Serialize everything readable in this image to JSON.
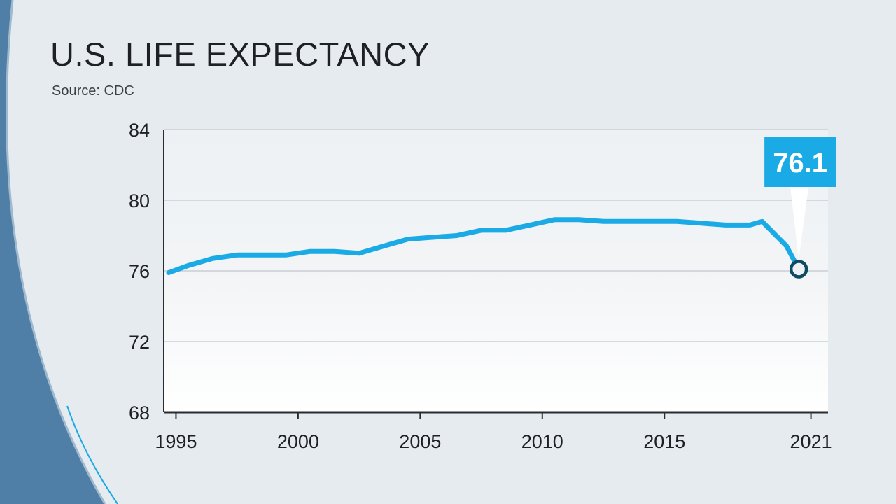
{
  "title": "U.S. LIFE EXPECTANCY",
  "source": "Source: CDC",
  "colors": {
    "line": "#1aaae6",
    "callout": "#1aaae6",
    "marker_stroke": "#0e4a63",
    "axis": "#2a2d30",
    "grid": "#c9cfd4"
  },
  "chart_data": {
    "type": "line",
    "title": "U.S. LIFE EXPECTANCY",
    "xlabel": "",
    "ylabel": "",
    "xlim": [
      1994.5,
      2021.7
    ],
    "ylim": [
      68,
      84
    ],
    "y_ticks": [
      84,
      80,
      76,
      72,
      68
    ],
    "x_ticks": [
      1995,
      2000,
      2005,
      2010,
      2015,
      2021
    ],
    "grid": true,
    "series": [
      {
        "x": [
          1994.7,
          1995.5,
          1996.5,
          1997.5,
          1998.5,
          1999.5,
          2000.5,
          2001.5,
          2002.5,
          2003.5,
          2004.5,
          2005.5,
          2006.5,
          2007.5,
          2008.5,
          2009.5,
          2010.5,
          2011.5,
          2012.5,
          2013.5,
          2014.5,
          2015.5,
          2016.5,
          2017.5,
          2018.5,
          2019,
          2020,
          2020.5
        ],
        "y": [
          75.9,
          76.3,
          76.7,
          76.9,
          76.9,
          76.9,
          77.1,
          77.1,
          77.0,
          77.4,
          77.8,
          77.9,
          78.0,
          78.3,
          78.3,
          78.6,
          78.9,
          78.9,
          78.8,
          78.8,
          78.8,
          78.8,
          78.7,
          78.6,
          78.6,
          78.8,
          77.4,
          76.1
        ]
      }
    ],
    "highlight": {
      "x": 2020.5,
      "y": 76.1,
      "label": "76.1"
    }
  }
}
